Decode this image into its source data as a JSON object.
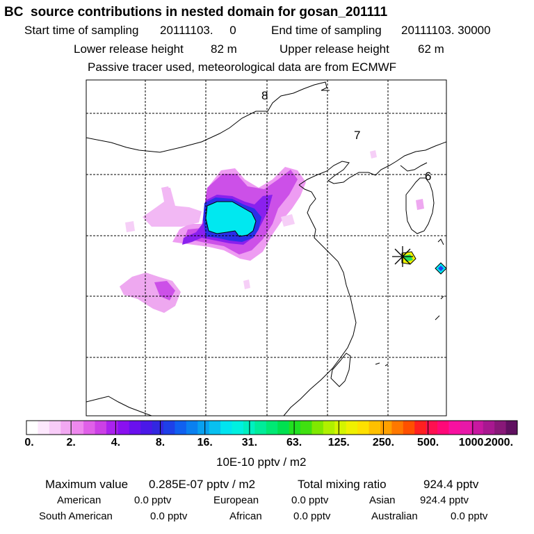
{
  "header": {
    "title": "BC  source contributions in nested domain for gosan_201111",
    "start_label": "Start time of sampling",
    "start_value": "20111103.     0",
    "end_label": "End time of sampling",
    "end_value": "20111103. 30000",
    "lower_label": "Lower release height",
    "lower_value": "82 m",
    "upper_label": "Upper release height",
    "upper_value": "62 m",
    "subtitle": "Passive tracer used, meteorological data are from ECMWF"
  },
  "map": {
    "timezone_labels": [
      "8",
      "7",
      "6"
    ],
    "receptor_marker": "receptor-cross"
  },
  "colorbar": {
    "unit": "10E-10 pptv / m2",
    "tick_labels": [
      "0.",
      "2.",
      "4.",
      "8.",
      "16.",
      "31.",
      "63.",
      "125.",
      "250.",
      "500.",
      "1000.",
      "2000."
    ],
    "colors": [
      "#ffffff",
      "#fde8fd",
      "#f8ccf8",
      "#f2a8f2",
      "#ee88ee",
      "#e060e8",
      "#cc40e6",
      "#aa22ee",
      "#8a10f0",
      "#6a10ee",
      "#4a18e8",
      "#3228e0",
      "#1e40e8",
      "#1060f0",
      "#0a80f0",
      "#08a0f0",
      "#08c0f0",
      "#00e4f0",
      "#00f0e0",
      "#00f0c0",
      "#00ec9a",
      "#00e874",
      "#00e050",
      "#20e020",
      "#40e010",
      "#80e800",
      "#b0f000",
      "#d4f400",
      "#f0f000",
      "#ffe000",
      "#ffc000",
      "#ffa000",
      "#ff7800",
      "#ff5000",
      "#ff2020",
      "#ff1050",
      "#ff0878",
      "#f810a0",
      "#e818a8",
      "#c818a0",
      "#a81890",
      "#881878",
      "#601060"
    ]
  },
  "stats": {
    "max_label": "Maximum value",
    "max_value": "0.285E-07 pptv / m2",
    "total_label": "Total mixing ratio",
    "total_value": "924.4 pptv",
    "regions": [
      {
        "name": "American",
        "value": "0.0 pptv"
      },
      {
        "name": "European",
        "value": "0.0 pptv"
      },
      {
        "name": "Asian",
        "value": "924.4 pptv"
      },
      {
        "name": "South American",
        "value": "0.0 pptv"
      },
      {
        "name": "African",
        "value": "0.0 pptv"
      },
      {
        "name": "Australian",
        "value": "0.0 pptv"
      }
    ]
  }
}
